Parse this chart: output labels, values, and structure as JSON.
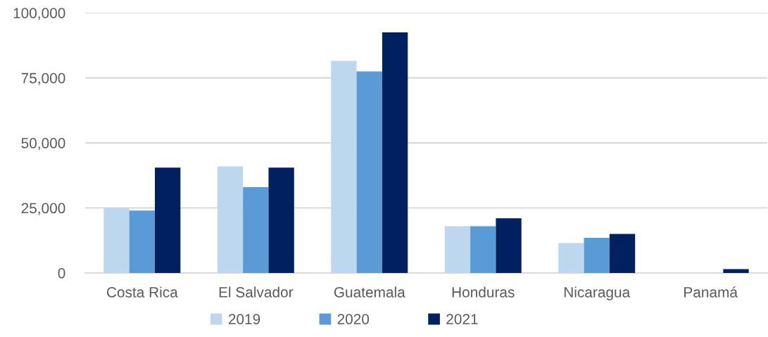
{
  "chart_data": {
    "type": "bar",
    "categories": [
      "Costa Rica",
      "El Salvador",
      "Guatemala",
      "Honduras",
      "Nicaragua",
      "Panamá"
    ],
    "series": [
      {
        "name": "2019",
        "color": "#bdd7ee",
        "values": [
          25000,
          41000,
          81500,
          18000,
          11500,
          null
        ]
      },
      {
        "name": "2020",
        "color": "#5b9bd5",
        "values": [
          24000,
          33000,
          77500,
          18000,
          13500,
          null
        ]
      },
      {
        "name": "2021",
        "color": "#002060",
        "values": [
          40500,
          40500,
          92500,
          21000,
          15000,
          1500
        ]
      }
    ],
    "ylim": [
      0,
      100000
    ],
    "yticks": [
      0,
      {
        "value": 25000,
        "label": "25,000"
      },
      {
        "value": 50000,
        "label": "50,000"
      },
      {
        "value": 75000,
        "label": "75,000"
      },
      {
        "value": 100000,
        "label": "100,000"
      }
    ],
    "grid": "y",
    "legend": "bottom"
  }
}
